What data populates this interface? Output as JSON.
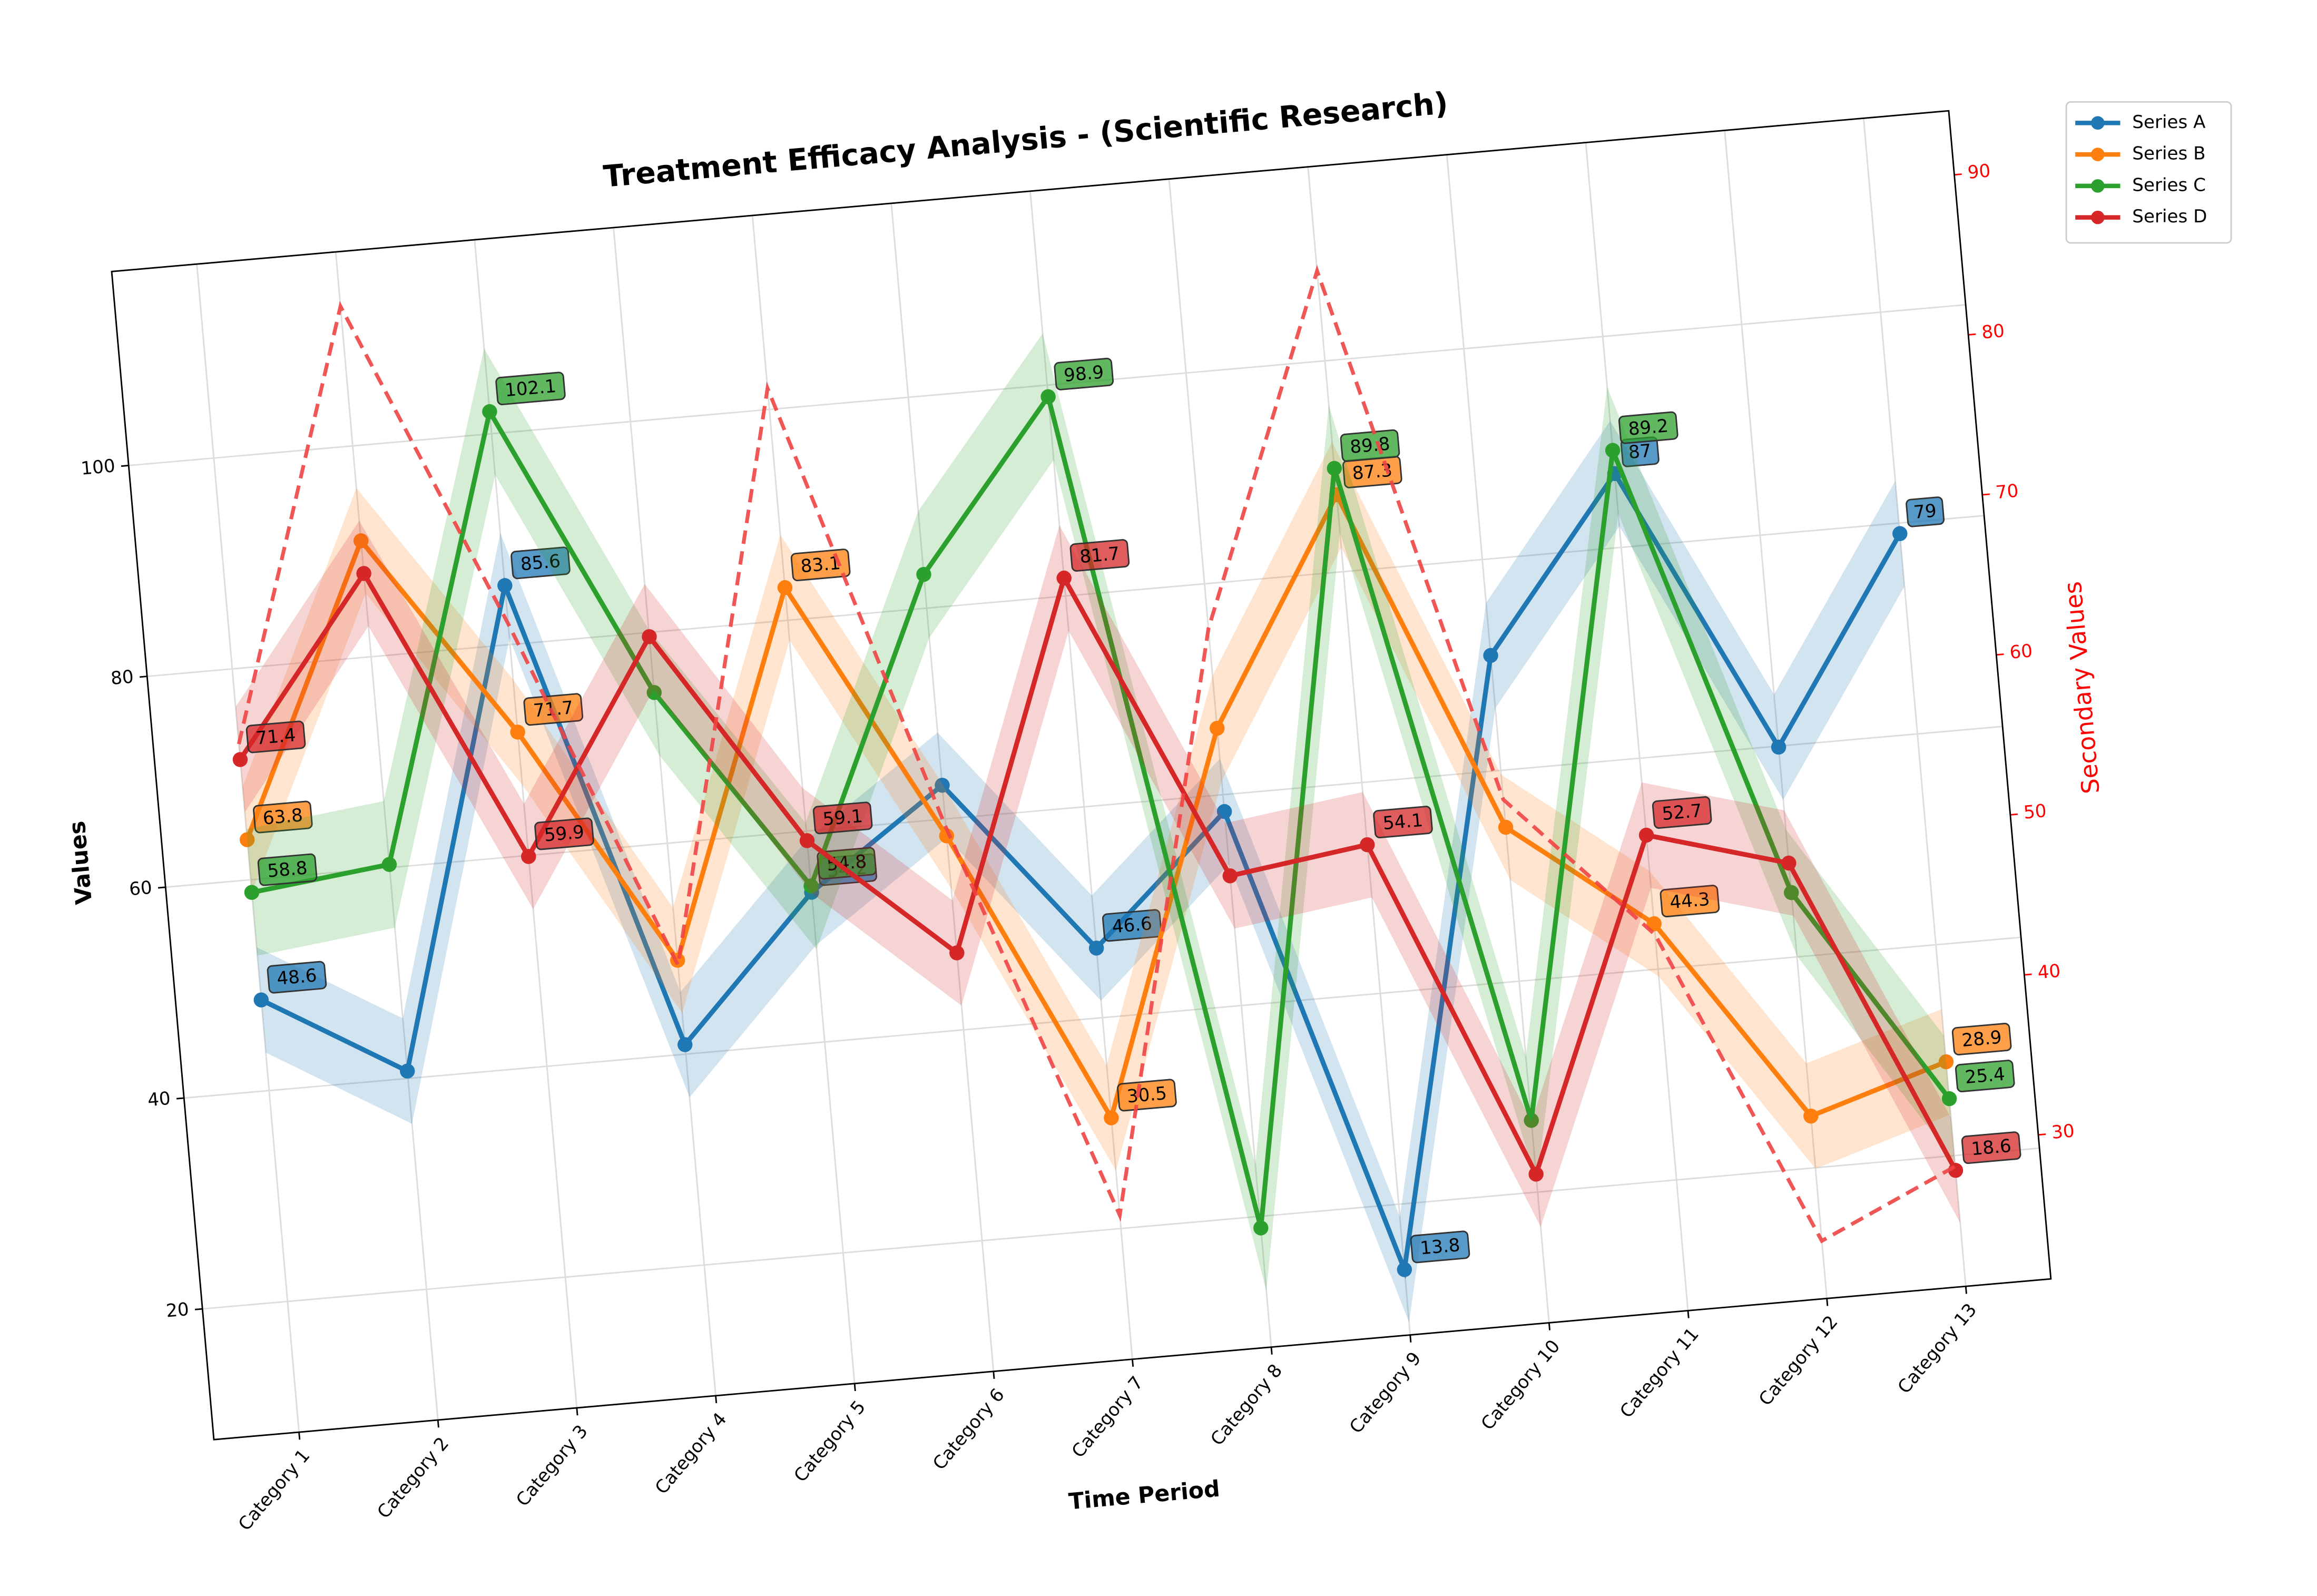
{
  "chart_data": {
    "type": "line",
    "title": "Treatment Efficacy Analysis - (Scientific Research)",
    "xlabel": "Time Period",
    "ylabel": "Values",
    "y2label": "Secondary Values",
    "categories": [
      "Category 1",
      "Category 2",
      "Category 3",
      "Category 4",
      "Category 5",
      "Category 6",
      "Category 7",
      "Category 8",
      "Category 9",
      "Category 10",
      "Category 11",
      "Category 12",
      "Category 13"
    ],
    "series": [
      {
        "name": "Series A",
        "color": "#1f77b4",
        "error": 5,
        "values": [
          48.6,
          40.7,
          85.6,
          40.9,
          54.2,
          63.2,
          46.6,
          58.4,
          13.8,
          70.9,
          87.0,
          59.9,
          79.0
        ]
      },
      {
        "name": "Series B",
        "color": "#ff7f0e",
        "error": 5,
        "values": [
          63.8,
          91.0,
          71.7,
          48.9,
          83.1,
          58.4,
          30.5,
          66.3,
          87.3,
          54.6,
          44.3,
          24.9,
          28.9
        ]
      },
      {
        "name": "Series C",
        "color": "#2ca02c",
        "error": 6,
        "values": [
          58.8,
          60.3,
          102.1,
          74.3,
          54.8,
          83.2,
          98.9,
          18.9,
          89.8,
          26.8,
          89.2,
          46.1,
          25.4
        ]
      },
      {
        "name": "Series D",
        "color": "#d62728",
        "error": 5,
        "values": [
          71.4,
          87.9,
          59.9,
          79.6,
          59.1,
          47.3,
          81.7,
          52.3,
          54.1,
          21.7,
          52.7,
          48.9,
          18.6
        ]
      },
      {
        "color": "#ef4444",
        "axis": "y2",
        "dashed": true,
        "values": [
          64.0,
          90.6,
          70.0,
          47.9,
          83.2,
          55.0,
          30.0,
          65.9,
          87.5,
          53.7,
          44.5,
          24.6,
          28.5
        ]
      }
    ],
    "ylim": [
      7.6,
      118.4
    ],
    "yticks": [
      20,
      40,
      60,
      80,
      100
    ],
    "y2lim": [
      21,
      94
    ],
    "y2ticks": [
      30,
      40,
      50,
      60,
      70,
      80,
      90
    ],
    "y2color": "#ff0000",
    "grid": true,
    "legend": "upper right",
    "rotation": -5
  }
}
